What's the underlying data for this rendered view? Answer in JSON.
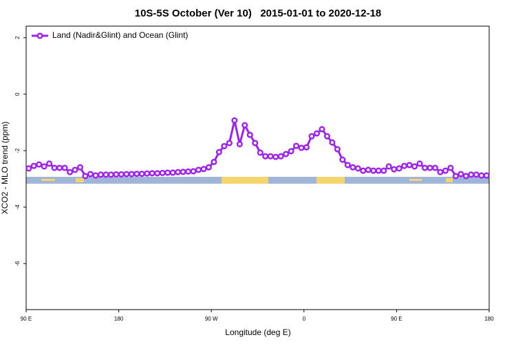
{
  "chart_data": {
    "type": "line",
    "title": "10S-5S October (Ver 10)   2015-01-01 to 2020-12-18",
    "xlabel": "Longitude (deg E)",
    "ylabel": "XCO2 - MLO trend (ppm)",
    "xlim": [
      90,
      540
    ],
    "ylim": [
      -7.63,
      2.41
    ],
    "xticks": [
      {
        "value": 90,
        "label": "90 E"
      },
      180,
      {
        "value": 270,
        "label": "90 W"
      },
      {
        "value": 360,
        "label": "0"
      },
      {
        "value": 450,
        "label": "90 E"
      },
      {
        "value": 540,
        "label": "180"
      }
    ],
    "yticks": [
      -6,
      -4,
      -2,
      0,
      2
    ],
    "legend": "top-left",
    "x": [
      92.5,
      97.5,
      102.5,
      107.5,
      112.5,
      117.5,
      122.5,
      127.5,
      132.5,
      137.5,
      142.5,
      147.5,
      152.5,
      157.5,
      162.5,
      167.5,
      172.5,
      177.5,
      182.5,
      187.5,
      192.5,
      197.5,
      202.5,
      207.5,
      212.5,
      217.5,
      222.5,
      227.5,
      232.5,
      237.5,
      242.5,
      247.5,
      252.5,
      257.5,
      262.5,
      267.5,
      272.5,
      277.5,
      282.5,
      287.5,
      292.5,
      297.5,
      302.5,
      307.5,
      312.5,
      317.5,
      322.5,
      327.5,
      332.5,
      337.5,
      342.5,
      347.5,
      352.5,
      357.5,
      362.5,
      367.5,
      372.5,
      377.5,
      382.5,
      387.5,
      392.5,
      397.5,
      402.5,
      407.5,
      412.5,
      417.5,
      422.5,
      427.5,
      432.5,
      437.5,
      442.5,
      447.5,
      452.5,
      457.5,
      462.5,
      467.5,
      472.5,
      477.5,
      482.5,
      487.5,
      492.5,
      497.5,
      502.5,
      507.5,
      512.5,
      517.5,
      522.5,
      527.5,
      532.5,
      537.5
    ],
    "series": [
      {
        "name": "Land (Nadir&Glint) and Ocean (Glint)",
        "color": "#a020f0",
        "values": [
          -2.63,
          -2.54,
          -2.49,
          -2.56,
          -2.46,
          -2.61,
          -2.61,
          -2.61,
          -2.76,
          -2.68,
          -2.59,
          -2.9,
          -2.83,
          -2.88,
          -2.85,
          -2.85,
          -2.85,
          -2.84,
          -2.84,
          -2.83,
          -2.83,
          -2.82,
          -2.82,
          -2.81,
          -2.8,
          -2.8,
          -2.79,
          -2.78,
          -2.78,
          -2.76,
          -2.75,
          -2.74,
          -2.73,
          -2.68,
          -2.65,
          -2.59,
          -2.4,
          -2.05,
          -1.84,
          -1.73,
          -0.93,
          -1.77,
          -1.1,
          -1.44,
          -1.73,
          -2.07,
          -2.2,
          -2.2,
          -2.22,
          -2.2,
          -2.12,
          -2.02,
          -1.83,
          -1.9,
          -1.88,
          -1.49,
          -1.39,
          -1.24,
          -1.49,
          -1.71,
          -1.95,
          -2.32,
          -2.51,
          -2.59,
          -2.63,
          -2.71,
          -2.68,
          -2.71,
          -2.71,
          -2.71,
          -2.56,
          -2.66,
          -2.63,
          -2.54,
          -2.51,
          -2.56,
          -2.46,
          -2.61,
          -2.61,
          -2.61,
          -2.76,
          -2.71,
          -2.61,
          -2.9,
          -2.83,
          -2.9,
          -2.85,
          -2.85,
          -2.88,
          -2.88
        ]
      }
    ]
  }
}
